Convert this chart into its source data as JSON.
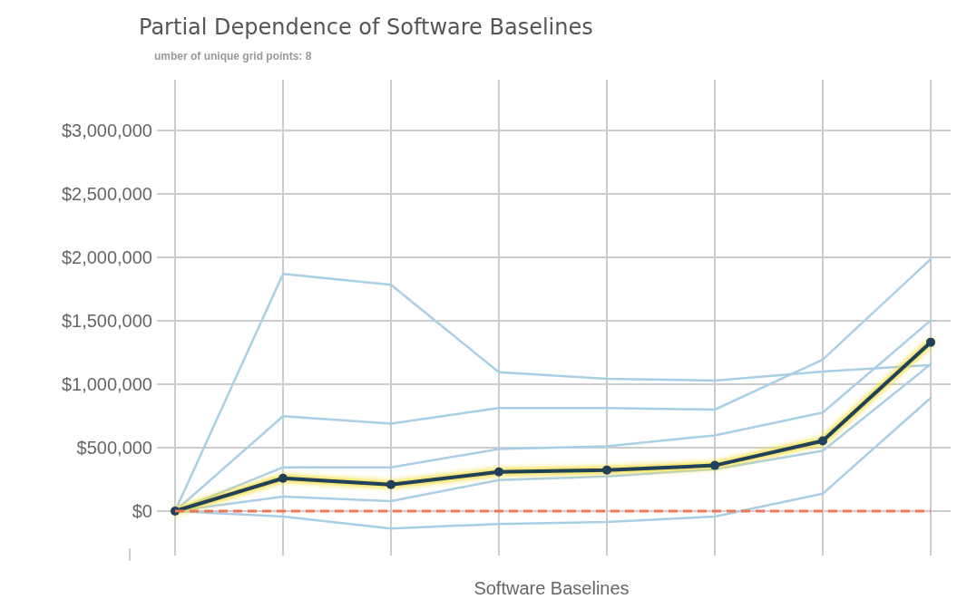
{
  "chart_data": {
    "type": "line",
    "title": "Partial Dependence of Software Baselines",
    "subtitle": "umber of unique grid points: 8",
    "xlabel": "Software Baselines",
    "categories": [
      null,
      null,
      null,
      null,
      null,
      null,
      null,
      null
    ],
    "series": [
      {
        "color": "#a9cfe6",
        "marker": "none",
        "values": [
          0,
          1870000,
          1784000,
          1094000,
          1043000,
          1029000,
          1100000,
          1151000
        ]
      },
      {
        "color": "#a9cfe6",
        "marker": "none",
        "values": [
          0,
          748000,
          690000,
          813000,
          813000,
          800000,
          1194000,
          1986000
        ]
      },
      {
        "color": "#a9cfe6",
        "marker": "none",
        "values": [
          0,
          345000,
          345000,
          489000,
          511000,
          597000,
          777000,
          1503000
        ]
      },
      {
        "color": "#a9cfe6",
        "marker": "none",
        "values": [
          0,
          115000,
          79000,
          245000,
          273000,
          331000,
          475000,
          1158000
        ]
      },
      {
        "color": "#a9cfe6",
        "marker": "none",
        "values": [
          0,
          -43000,
          -137000,
          -101000,
          -86000,
          -43000,
          137000,
          892000
        ]
      },
      {
        "color": "#1f4159",
        "marker": "circle",
        "values": [
          0,
          259000,
          209000,
          309000,
          324000,
          360000,
          554000,
          1331000
        ]
      }
    ],
    "ylim": [
      -350000,
      3400000
    ],
    "yticks": [
      {
        "value": 0,
        "label": "$0"
      },
      {
        "value": 500000,
        "label": "$500,000"
      },
      {
        "value": 1000000,
        "label": "$1,000,000"
      },
      {
        "value": 1500000,
        "label": "$1,500,000"
      },
      {
        "value": 2000000,
        "label": "$2,000,000"
      },
      {
        "value": 2500000,
        "label": "$2,500,000"
      },
      {
        "value": 3000000,
        "label": "$3,000,000"
      }
    ],
    "ref_lines": [
      {
        "axis": "y",
        "value": 0,
        "color": "#ee7656",
        "line_style": "dashed"
      }
    ],
    "grid": true,
    "line_style": "solid"
  }
}
